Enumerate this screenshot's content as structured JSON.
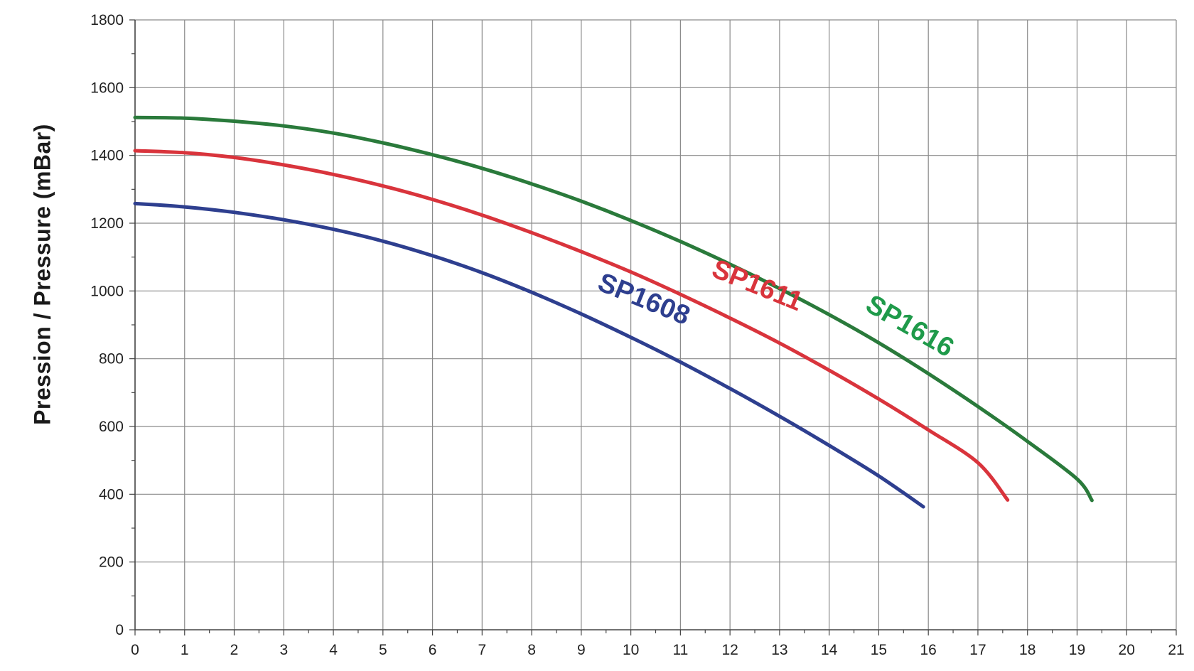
{
  "chart_data": {
    "type": "line",
    "ylabel": "Pression / Pressure (mBar)",
    "xlabel": "",
    "xlim": [
      0,
      21
    ],
    "ylim": [
      0,
      1800
    ],
    "x_ticks": [
      0,
      1,
      2,
      3,
      4,
      5,
      6,
      7,
      8,
      9,
      10,
      11,
      12,
      13,
      14,
      15,
      16,
      17,
      18,
      19,
      20,
      21
    ],
    "y_ticks": [
      0,
      200,
      400,
      600,
      800,
      1000,
      1200,
      1400,
      1600,
      1800
    ],
    "grid": true,
    "series": [
      {
        "name": "SP1608",
        "color": "#2e3f8f",
        "x": [
          0,
          1,
          2,
          3,
          4,
          5,
          6,
          7,
          8,
          9,
          10,
          11,
          12,
          13,
          14,
          15,
          15.9
        ],
        "y": [
          1258,
          1248,
          1232,
          1210,
          1182,
          1147,
          1104,
          1054,
          996,
          932,
          863,
          790,
          712,
          630,
          544,
          454,
          363
        ]
      },
      {
        "name": "SP1611",
        "color": "#d9343c",
        "x": [
          0,
          1,
          2,
          3,
          4,
          5,
          6,
          7,
          8,
          9,
          10,
          11,
          12,
          13,
          14,
          15,
          16,
          17,
          17.6
        ],
        "y": [
          1414,
          1408,
          1394,
          1372,
          1344,
          1310,
          1270,
          1224,
          1172,
          1116,
          1056,
          990,
          920,
          846,
          766,
          681,
          590,
          493,
          383
        ]
      },
      {
        "name": "SP1616",
        "color": "#2a7a3b",
        "x": [
          0,
          1,
          2,
          3,
          4,
          5,
          6,
          7,
          8,
          9,
          10,
          11,
          12,
          13,
          14,
          15,
          16,
          17,
          18,
          19,
          19.3
        ],
        "y": [
          1512,
          1510,
          1501,
          1487,
          1466,
          1437,
          1402,
          1362,
          1316,
          1265,
          1208,
          1146,
          1079,
          1007,
          930,
          847,
          756,
          659,
          556,
          445,
          382
        ]
      }
    ],
    "annotations": [
      {
        "text": "SP1608",
        "color": "#2e3f8f"
      },
      {
        "text": "SP1611",
        "color": "#d9343c"
      },
      {
        "text": "SP1616",
        "color": "#1f9a4a"
      }
    ]
  }
}
